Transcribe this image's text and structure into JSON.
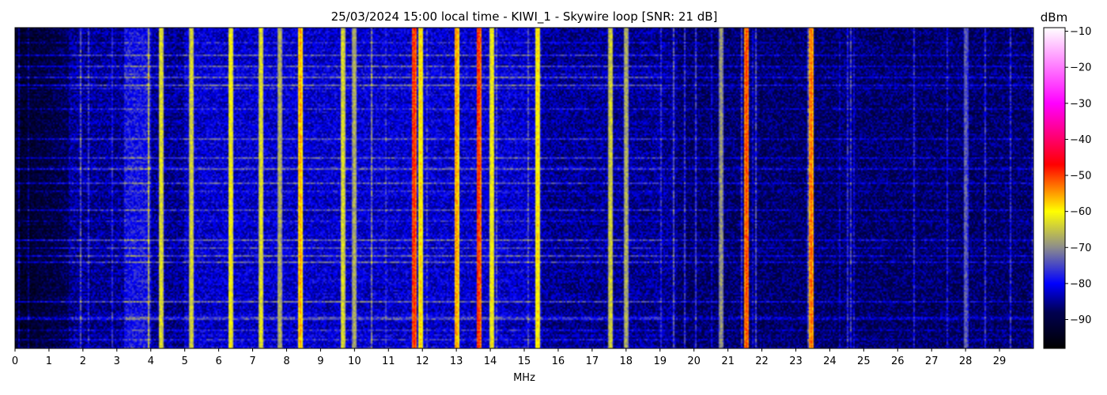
{
  "chart_data": {
    "type": "heatmap",
    "title": "25/03/2024 15:00 local time - KIWI_1 - Skywire loop [SNR: 21 dB]",
    "xlabel": "MHz",
    "ylabel": "",
    "xlim": [
      0,
      30
    ],
    "x_ticks": [
      "0",
      "1",
      "2",
      "3",
      "4",
      "5",
      "6",
      "7",
      "8",
      "9",
      "10",
      "11",
      "12",
      "13",
      "14",
      "15",
      "16",
      "17",
      "18",
      "19",
      "20",
      "21",
      "22",
      "23",
      "24",
      "25",
      "26",
      "27",
      "28",
      "29"
    ],
    "y_ticks_visible": false,
    "colorbar": {
      "label": "dBm",
      "range": [
        -98,
        -9
      ],
      "ticks": [
        -10,
        -20,
        -30,
        -40,
        -50,
        -60,
        -70,
        -80,
        -90
      ],
      "tick_labels": [
        "−10",
        "−20",
        "−30",
        "−40",
        "−50",
        "−60",
        "−70",
        "−80",
        "−90"
      ],
      "colormap": [
        {
          "v": -98,
          "color": "#000000"
        },
        {
          "v": -88,
          "color": "#000050"
        },
        {
          "v": -80,
          "color": "#0000ff"
        },
        {
          "v": -70,
          "color": "#8c8c8c"
        },
        {
          "v": -60,
          "color": "#ffff00"
        },
        {
          "v": -47,
          "color": "#ff0000"
        },
        {
          "v": -30,
          "color": "#ff00ff"
        },
        {
          "v": -9,
          "color": "#ffffff"
        }
      ]
    },
    "background_level_dbm": -85,
    "strong_signals": [
      {
        "freq_mhz": 11.75,
        "level_dbm": -48
      },
      {
        "freq_mhz": 13.65,
        "level_dbm": -48
      },
      {
        "freq_mhz": 21.55,
        "level_dbm": -50
      },
      {
        "freq_mhz": 23.45,
        "level_dbm": -52
      },
      {
        "freq_mhz": 13.0,
        "level_dbm": -54
      },
      {
        "freq_mhz": 8.4,
        "level_dbm": -55
      },
      {
        "freq_mhz": 11.95,
        "level_dbm": -58
      },
      {
        "freq_mhz": 15.4,
        "level_dbm": -58
      },
      {
        "freq_mhz": 14.05,
        "level_dbm": -60
      },
      {
        "freq_mhz": 6.35,
        "level_dbm": -60
      },
      {
        "freq_mhz": 7.25,
        "level_dbm": -62
      },
      {
        "freq_mhz": 9.65,
        "level_dbm": -62
      },
      {
        "freq_mhz": 4.3,
        "level_dbm": -62
      },
      {
        "freq_mhz": 5.2,
        "level_dbm": -63
      },
      {
        "freq_mhz": 17.55,
        "level_dbm": -63
      },
      {
        "freq_mhz": 18.0,
        "level_dbm": -66
      },
      {
        "freq_mhz": 10.0,
        "level_dbm": -66
      },
      {
        "freq_mhz": 7.8,
        "level_dbm": -66
      },
      {
        "freq_mhz": 20.8,
        "level_dbm": -68
      },
      {
        "freq_mhz": 28.0,
        "level_dbm": -72
      }
    ]
  }
}
